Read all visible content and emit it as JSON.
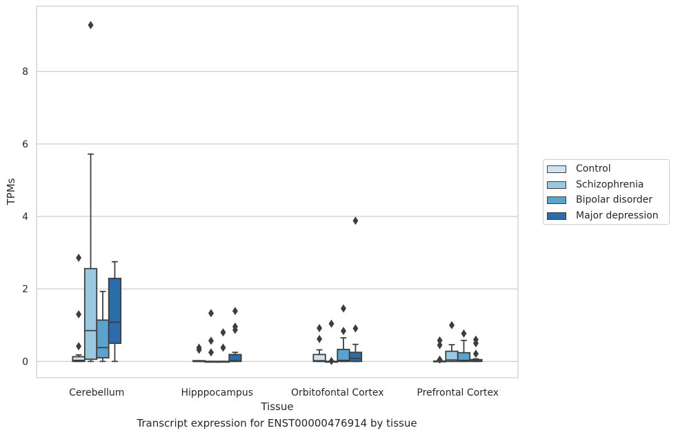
{
  "chart_data": {
    "type": "box",
    "title": "",
    "caption": "Transcript expression for ENST00000476914 by tissue",
    "xlabel": "Tissue",
    "ylabel": "TPMs",
    "ylim": [
      -0.45,
      9.8
    ],
    "yticks": [
      0,
      2,
      4,
      6,
      8
    ],
    "grid": "horizontal",
    "legend_position": "center-right outside",
    "categories": [
      "Cerebellum",
      "Hipppocampus",
      "Orbitofontal Cortex",
      "Prefrontal Cortex"
    ],
    "series": [
      {
        "name": "Control",
        "color": "#d0e2f2",
        "boxes": [
          {
            "q1": 0.0,
            "median": 0.03,
            "q3": 0.13,
            "whisker_low": 0.0,
            "whisker_high": 0.18,
            "outliers": [
              0.42,
              1.3,
              2.86
            ]
          },
          {
            "q1": 0.0,
            "median": 0.0,
            "q3": 0.02,
            "whisker_low": 0.0,
            "whisker_high": 0.02,
            "outliers": [
              0.32,
              0.38
            ]
          },
          {
            "q1": 0.0,
            "median": 0.02,
            "q3": 0.19,
            "whisker_low": 0.0,
            "whisker_high": 0.32,
            "outliers": [
              0.62,
              0.92
            ]
          },
          {
            "q1": 0.0,
            "median": 0.0,
            "q3": 0.01,
            "whisker_low": 0.0,
            "whisker_high": 0.02,
            "outliers": [
              0.05,
              0.45,
              0.58
            ]
          }
        ]
      },
      {
        "name": "Schizophrenia",
        "color": "#9ac8e0",
        "boxes": [
          {
            "q1": 0.06,
            "median": 0.85,
            "q3": 2.56,
            "whisker_low": 0.0,
            "whisker_high": 5.72,
            "outliers": [
              9.28
            ]
          },
          {
            "q1": 0.0,
            "median": 0.0,
            "q3": 0.0,
            "whisker_low": 0.0,
            "whisker_high": 0.0,
            "outliers": [
              0.25,
              0.57,
              1.33
            ]
          },
          {
            "q1": 0.0,
            "median": 0.0,
            "q3": 0.0,
            "whisker_low": 0.0,
            "whisker_high": 0.0,
            "outliers": [
              0.01,
              1.04
            ]
          },
          {
            "q1": 0.0,
            "median": 0.04,
            "q3": 0.28,
            "whisker_low": 0.0,
            "whisker_high": 0.46,
            "outliers": [
              1.0
            ]
          }
        ]
      },
      {
        "name": "Bipolar disorder",
        "color": "#5ba3cf",
        "boxes": [
          {
            "q1": 0.1,
            "median": 0.38,
            "q3": 1.14,
            "whisker_low": 0.0,
            "whisker_high": 1.93,
            "outliers": []
          },
          {
            "q1": 0.0,
            "median": 0.0,
            "q3": 0.0,
            "whisker_low": 0.0,
            "whisker_high": 0.0,
            "outliers": [
              0.38,
              0.8
            ]
          },
          {
            "q1": 0.0,
            "median": 0.03,
            "q3": 0.33,
            "whisker_low": 0.0,
            "whisker_high": 0.65,
            "outliers": [
              0.84,
              1.46
            ]
          },
          {
            "q1": 0.0,
            "median": 0.03,
            "q3": 0.24,
            "whisker_low": 0.0,
            "whisker_high": 0.58,
            "outliers": [
              0.77
            ]
          }
        ]
      },
      {
        "name": "Major depression",
        "color": "#2b6ca9",
        "boxes": [
          {
            "q1": 0.5,
            "median": 1.08,
            "q3": 2.29,
            "whisker_low": 0.0,
            "whisker_high": 2.75,
            "outliers": []
          },
          {
            "q1": 0.0,
            "median": 0.02,
            "q3": 0.19,
            "whisker_low": 0.0,
            "whisker_high": 0.25,
            "outliers": [
              0.87,
              0.96,
              1.39
            ]
          },
          {
            "q1": 0.0,
            "median": 0.08,
            "q3": 0.25,
            "whisker_low": 0.0,
            "whisker_high": 0.47,
            "outliers": [
              0.91,
              3.88
            ]
          },
          {
            "q1": 0.0,
            "median": 0.01,
            "q3": 0.05,
            "whisker_low": 0.0,
            "whisker_high": 0.07,
            "outliers": [
              0.21,
              0.5,
              0.6
            ]
          }
        ]
      }
    ]
  }
}
